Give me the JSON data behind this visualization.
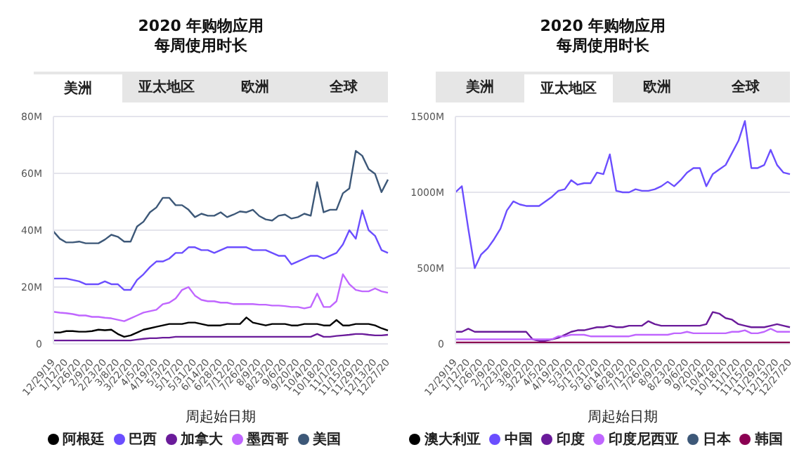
{
  "chart_data": [
    {
      "type": "line",
      "title": "2020 年购物应用",
      "subtitle": "每周使用时长",
      "annotations": [
        "美洲",
        "亚太地区",
        "欧洲",
        "全球"
      ],
      "xlabel": "周起始日期",
      "categories": [
        "12/29/19",
        null,
        "1/12/20",
        null,
        "1/26/20",
        null,
        "2/9/20",
        null,
        "2/23/20",
        null,
        "3/8/20",
        null,
        "3/22/20",
        null,
        "4/5/20",
        null,
        "4/19/20",
        null,
        "5/3/20",
        null,
        "5/17/20",
        null,
        "5/31/20",
        null,
        "6/14/20",
        null,
        "6/28/20",
        null,
        "7/12/20",
        null,
        "7/26/20",
        null,
        "8/9/20",
        null,
        "8/23/20",
        null,
        "9/6/20",
        null,
        "9/20/20",
        null,
        "10/4/20",
        null,
        "10/18/20",
        null,
        "11/1/20",
        null,
        "11/15/20",
        null,
        "11/29/20",
        null,
        "12/13/20",
        null,
        "12/27/20"
      ],
      "series": [
        {
          "name": "阿根廷",
          "color": "#000000",
          "values": [
            4,
            4,
            4.5,
            4.5,
            4.3,
            4.3,
            4.5,
            5,
            4.8,
            5,
            3.5,
            2.5,
            3,
            4,
            5,
            5.5,
            6,
            6.5,
            7,
            7,
            7,
            7.5,
            7.5,
            7,
            6.5,
            6.5,
            6.5,
            7,
            7,
            7,
            9.3,
            7.5,
            7,
            6.5,
            7,
            7,
            7,
            6.5,
            6.5,
            7,
            7,
            7,
            6.5,
            6.5,
            8.4,
            6.5,
            6.5,
            7,
            7,
            7,
            6.5,
            5.5,
            4.7
          ]
        },
        {
          "name": "巴西",
          "color": "#6b4eff",
          "values": [
            23,
            23,
            23,
            22.5,
            22,
            21,
            21,
            21,
            22,
            21,
            21,
            19,
            19,
            22.5,
            24.5,
            27,
            29,
            29,
            30,
            32,
            32,
            34,
            34,
            33,
            33,
            32,
            33,
            34,
            34,
            34,
            34,
            33,
            33,
            33,
            32,
            31,
            31,
            28,
            29,
            30,
            31,
            31,
            30,
            31,
            32,
            35,
            40,
            37,
            47,
            40,
            38,
            33,
            32
          ]
        },
        {
          "name": "加拿大",
          "color": "#6a1b9a",
          "values": [
            1.2,
            1.2,
            1.2,
            1.2,
            1.2,
            1.2,
            1.2,
            1.2,
            1.2,
            1.2,
            1.2,
            1.2,
            1.2,
            1.5,
            1.8,
            2,
            2,
            2.2,
            2.2,
            2.5,
            2.5,
            2.5,
            2.5,
            2.5,
            2.5,
            2.5,
            2.5,
            2.5,
            2.5,
            2.5,
            2.5,
            2.5,
            2.5,
            2.5,
            2.5,
            2.5,
            2.5,
            2.5,
            2.5,
            2.5,
            2.5,
            3.5,
            2.5,
            2.5,
            2.8,
            3,
            3.2,
            3.5,
            3.5,
            3.2,
            3,
            3,
            3.2
          ]
        },
        {
          "name": "墨西哥",
          "color": "#c066ff",
          "values": [
            11.3,
            11,
            10.8,
            10.5,
            10,
            10,
            9.5,
            9.5,
            9.2,
            9,
            8.5,
            8,
            9,
            10,
            11,
            11.5,
            12,
            14,
            14.5,
            16,
            19,
            20,
            17,
            15.5,
            15,
            15,
            14.5,
            14.5,
            14,
            14,
            14,
            14,
            13.8,
            13.8,
            13.5,
            13.5,
            13.3,
            13,
            13,
            12.5,
            13,
            17.7,
            13,
            13,
            15,
            24.5,
            21,
            19,
            18.5,
            18.5,
            19.5,
            18.5,
            18
          ]
        },
        {
          "name": "美国",
          "color": "#3d5878",
          "values": [
            39.6,
            37,
            35.7,
            35.7,
            36,
            35.4,
            35.4,
            35.4,
            36.7,
            38.4,
            37.7,
            36,
            36,
            41.3,
            43,
            46.3,
            48,
            51.4,
            51.4,
            48.8,
            48.8,
            47.2,
            44.6,
            45.8,
            45.1,
            45.1,
            46.3,
            44.6,
            45.5,
            46.6,
            46.3,
            47.2,
            45,
            43.8,
            43.4,
            45.1,
            45.5,
            44.1,
            44.6,
            45.8,
            45.1,
            56.9,
            46.3,
            47.2,
            47.2,
            53,
            54.7,
            67.9,
            66.2,
            61.5,
            59.8,
            53.4,
            57.8
          ]
        }
      ],
      "ylim": [
        0,
        80
      ],
      "yticks": [
        0,
        {
          "value": 20,
          "label": "20M"
        },
        {
          "value": 40,
          "label": "40M"
        },
        {
          "value": 60,
          "label": "60M"
        },
        {
          "value": 80,
          "label": "80M"
        }
      ],
      "grid": "y",
      "legend": "bottom"
    },
    {
      "type": "line",
      "title": "2020 年购物应用",
      "subtitle": "每周使用时长",
      "annotations": [
        "美洲",
        "亚太地区",
        "欧洲",
        "全球"
      ],
      "xlabel": "周起始日期",
      "categories": [
        "12/29/19",
        null,
        "1/12/20",
        null,
        "1/26/20",
        null,
        "2/9/20",
        null,
        "2/23/20",
        null,
        "3/8/20",
        null,
        "3/22/20",
        null,
        "4/5/20",
        null,
        "4/19/20",
        null,
        "5/3/20",
        null,
        "5/17/20",
        null,
        "5/31/20",
        null,
        "6/14/20",
        null,
        "6/28/20",
        null,
        "7/12/20",
        null,
        "7/26/20",
        null,
        "8/9/20",
        null,
        "8/23/20",
        null,
        "9/6/20",
        null,
        "9/20/20",
        null,
        "10/4/20",
        null,
        "10/18/20",
        null,
        "11/1/20",
        null,
        "11/15/20",
        null,
        "11/29/20",
        null,
        "12/13/20",
        null,
        "12/27/20"
      ],
      "series": [
        {
          "name": "澳大利亚",
          "color": "#000000",
          "values": [
            null,
            null,
            null,
            null,
            null,
            null,
            null,
            null,
            null,
            null,
            null,
            null,
            null,
            null,
            null,
            null,
            null,
            null,
            null,
            null,
            null,
            null,
            null,
            null,
            null,
            null,
            null,
            null,
            null,
            null,
            null,
            null,
            null,
            null,
            null,
            null,
            null,
            null,
            null,
            null,
            null,
            null,
            null,
            null,
            null,
            null,
            null,
            null,
            null,
            null,
            null,
            null,
            null
          ]
        },
        {
          "name": "中国",
          "color": "#6b4eff",
          "values": [
            1000,
            1040,
            760,
            500,
            590,
            630,
            690,
            760,
            880,
            940,
            920,
            910,
            910,
            910,
            940,
            970,
            1010,
            1020,
            1080,
            1050,
            1060,
            1060,
            1130,
            1120,
            1250,
            1010,
            1000,
            1000,
            1020,
            1010,
            1010,
            1020,
            1040,
            1070,
            1040,
            1080,
            1130,
            1160,
            1160,
            1040,
            1120,
            1150,
            1180,
            1260,
            1340,
            1470,
            1160,
            1160,
            1180,
            1280,
            1180,
            1130,
            1120
          ]
        },
        {
          "name": "印度",
          "color": "#6a1b9a",
          "values": [
            80,
            80,
            100,
            80,
            80,
            80,
            80,
            80,
            80,
            80,
            80,
            80,
            30,
            20,
            20,
            30,
            40,
            60,
            80,
            90,
            90,
            100,
            110,
            110,
            120,
            110,
            110,
            120,
            120,
            120,
            150,
            130,
            120,
            120,
            120,
            120,
            120,
            120,
            120,
            130,
            210,
            200,
            170,
            160,
            130,
            120,
            110,
            110,
            110,
            120,
            130,
            120,
            110
          ]
        },
        {
          "name": "印度尼西亚",
          "color": "#c066ff",
          "values": [
            30,
            30,
            30,
            30,
            30,
            30,
            30,
            30,
            30,
            30,
            30,
            30,
            30,
            30,
            30,
            30,
            50,
            50,
            60,
            60,
            60,
            50,
            50,
            50,
            50,
            50,
            50,
            50,
            60,
            60,
            60,
            60,
            60,
            60,
            70,
            70,
            80,
            70,
            70,
            70,
            70,
            70,
            70,
            80,
            80,
            90,
            70,
            70,
            80,
            100,
            80,
            80,
            80
          ]
        },
        {
          "name": "日本",
          "color": "#3d5878",
          "values": [
            null,
            null,
            null,
            null,
            null,
            null,
            null,
            null,
            null,
            null,
            null,
            null,
            null,
            null,
            null,
            null,
            null,
            null,
            null,
            null,
            null,
            null,
            null,
            null,
            null,
            null,
            null,
            null,
            null,
            null,
            null,
            null,
            null,
            null,
            null,
            null,
            null,
            null,
            null,
            null,
            null,
            null,
            null,
            null,
            null,
            null,
            null,
            null,
            null,
            null,
            null,
            null,
            null
          ]
        },
        {
          "name": "韩国",
          "color": "#8b0052",
          "values": [
            10,
            10,
            10,
            10,
            10,
            10,
            10,
            10,
            10,
            10,
            10,
            10,
            10,
            10,
            10,
            10,
            10,
            10,
            10,
            10,
            10,
            10,
            10,
            10,
            10,
            10,
            10,
            10,
            10,
            10,
            10,
            10,
            10,
            10,
            10,
            10,
            10,
            10,
            10,
            10,
            10,
            10,
            10,
            10,
            10,
            10,
            10,
            10,
            10,
            10,
            10,
            10,
            10
          ]
        }
      ],
      "ylim": [
        0,
        1500
      ],
      "yticks": [
        0,
        {
          "value": 500,
          "label": "500M"
        },
        {
          "value": 1000,
          "label": "1000M"
        },
        {
          "value": 1500,
          "label": "1500M"
        }
      ],
      "grid": "y",
      "legend": "bottom"
    }
  ]
}
